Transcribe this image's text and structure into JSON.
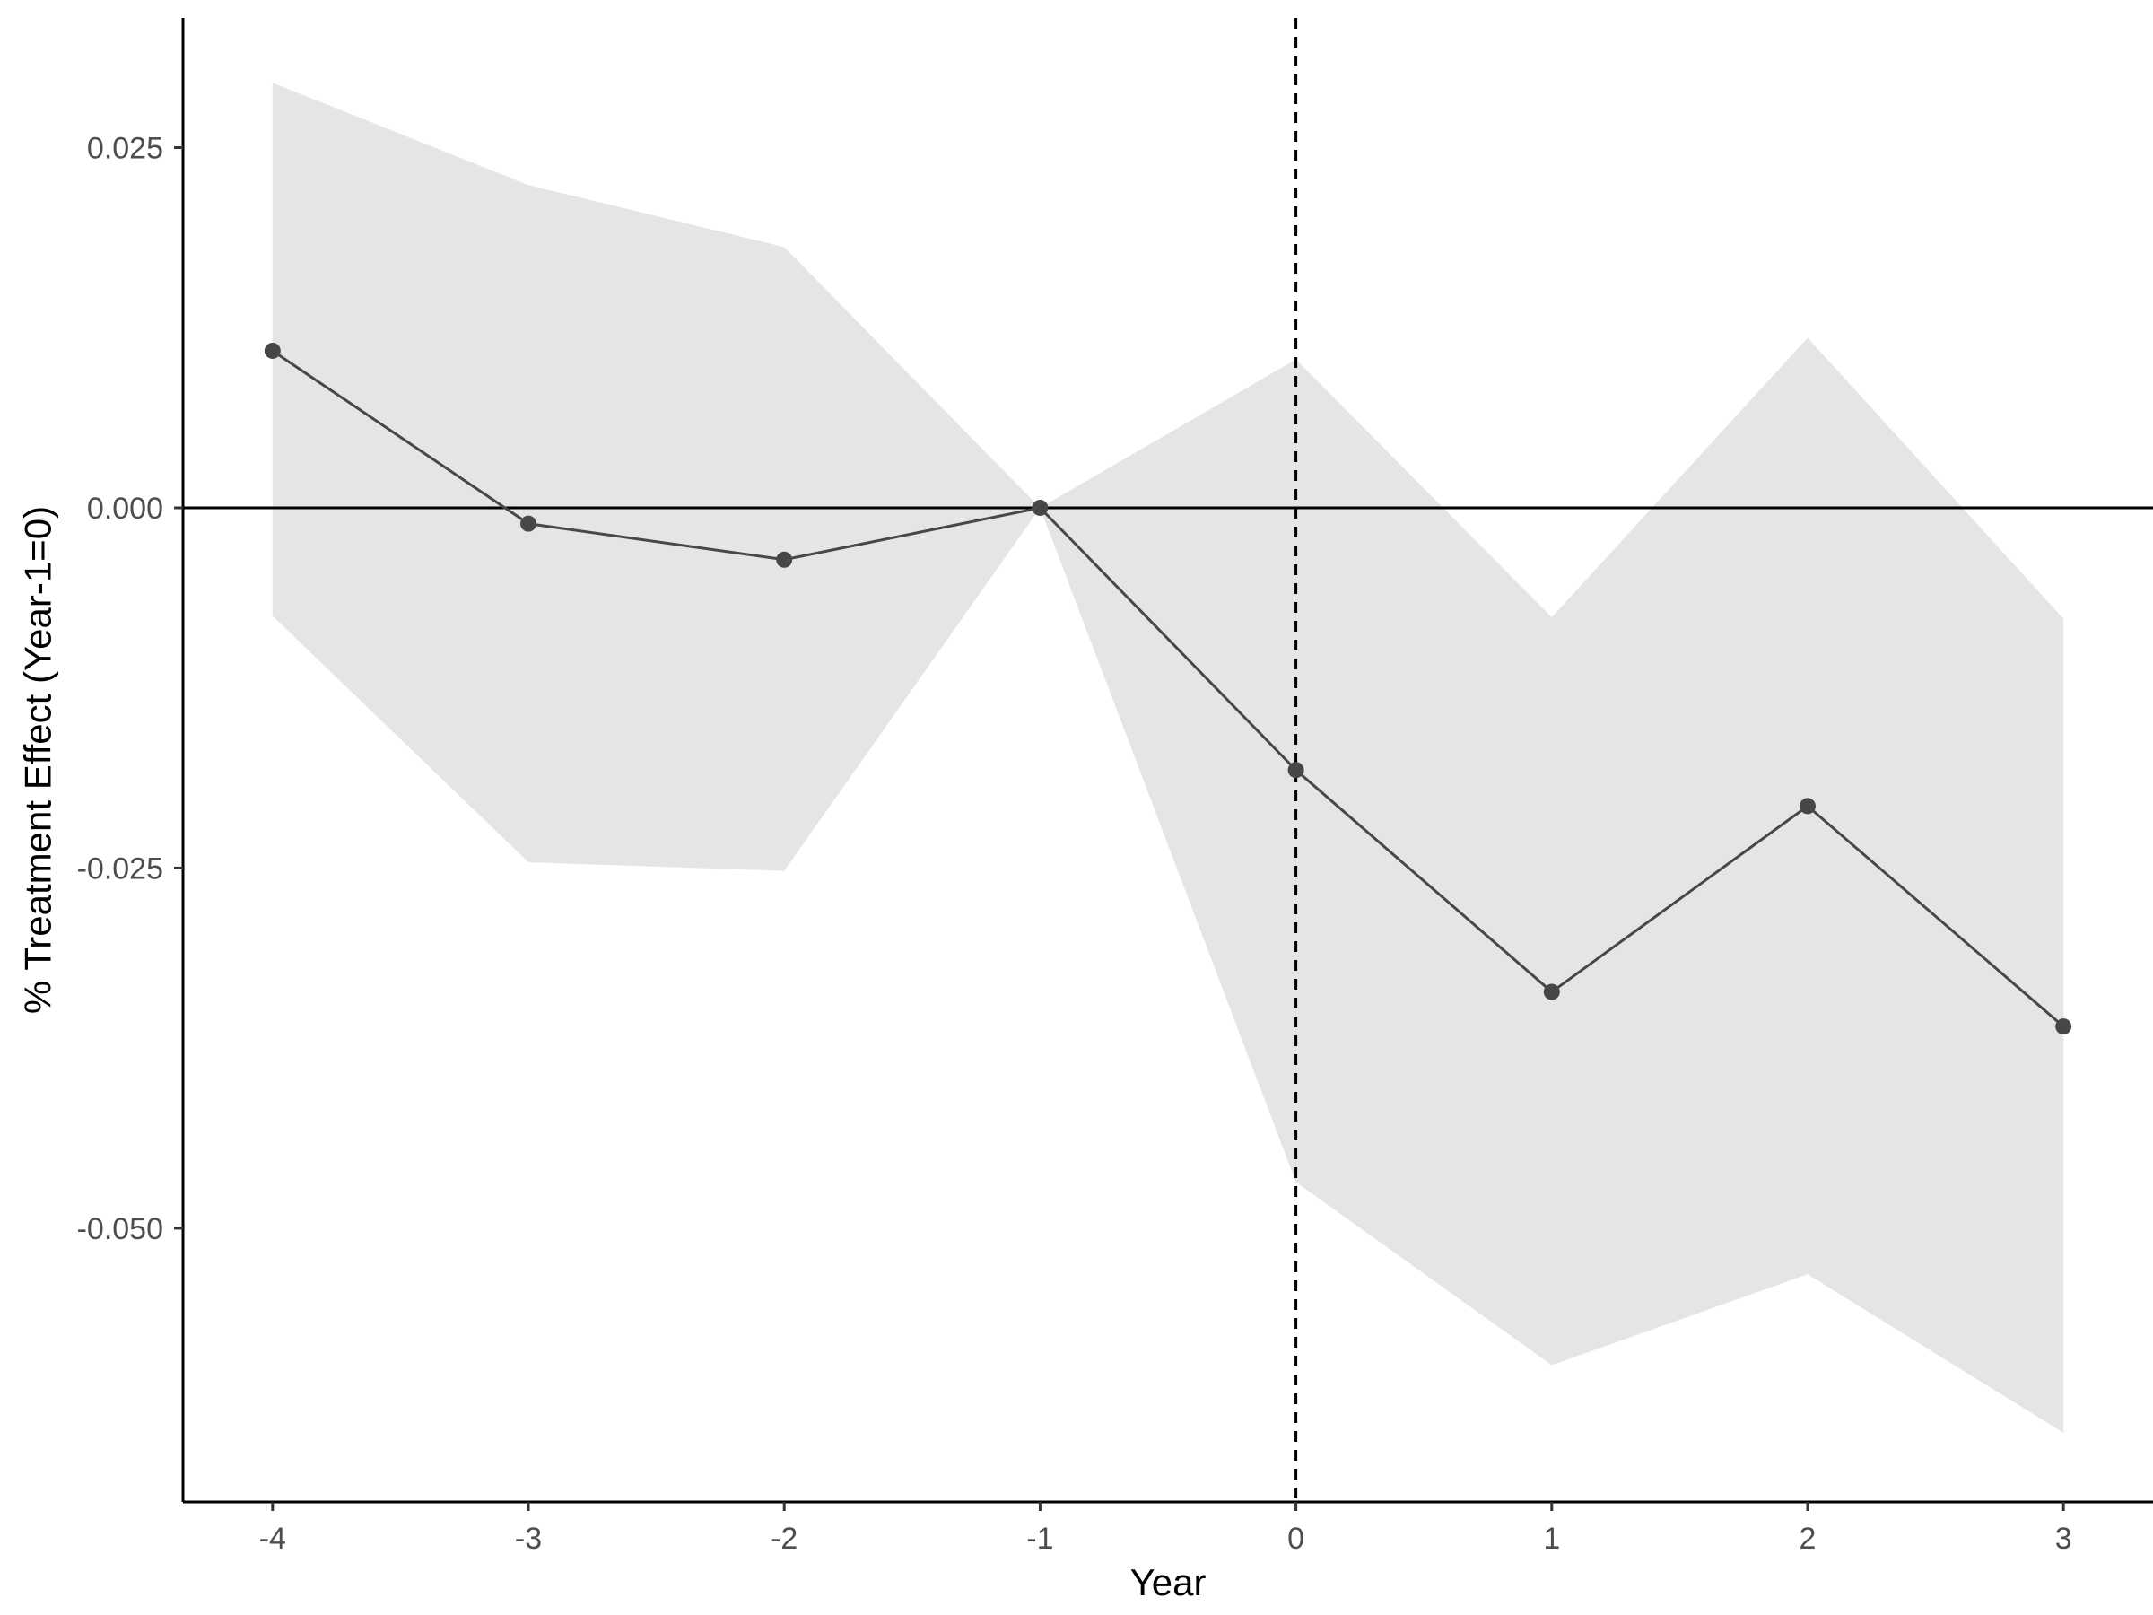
{
  "chart_data": {
    "type": "line",
    "title": "",
    "xlabel": "Year",
    "ylabel": "% Treatment Effect (Year-1=0)",
    "xlim": [
      -4.35,
      3.35
    ],
    "ylim": [
      -0.069,
      0.034
    ],
    "x_ticks": [
      -4,
      -3,
      -2,
      -1,
      0,
      1,
      2,
      3
    ],
    "x_tick_labels": [
      "-4",
      "-3",
      "-2",
      "-1",
      "0",
      "1",
      "2",
      "3"
    ],
    "y_ticks": [
      0.025,
      0.0,
      -0.025,
      -0.05
    ],
    "y_tick_labels": [
      "0.025",
      "0.000",
      "-0.025",
      "-0.050"
    ],
    "grid": false,
    "legend": "none",
    "reference_lines": {
      "horizontal_y": 0.0,
      "vertical_x": 0
    },
    "series": [
      {
        "x": [
          -4,
          -3,
          -2,
          -1,
          0,
          1,
          2,
          3
        ],
        "values": [
          0.0109,
          -0.0011,
          -0.0036,
          0.0,
          -0.0182,
          -0.0336,
          -0.0207,
          -0.036
        ],
        "ci_lower": [
          -0.0075,
          -0.0246,
          -0.0252,
          0.0,
          -0.0468,
          -0.0595,
          -0.0532,
          -0.0642
        ],
        "ci_upper": [
          0.0295,
          0.0224,
          0.0181,
          0.0,
          0.0103,
          -0.0076,
          0.0118,
          -0.0077
        ]
      }
    ],
    "colors": {
      "band": "#e5e5e5",
      "line": "#474747",
      "point": "#474747",
      "axis": "#000000",
      "tick_text": "#4d4d4d"
    }
  }
}
